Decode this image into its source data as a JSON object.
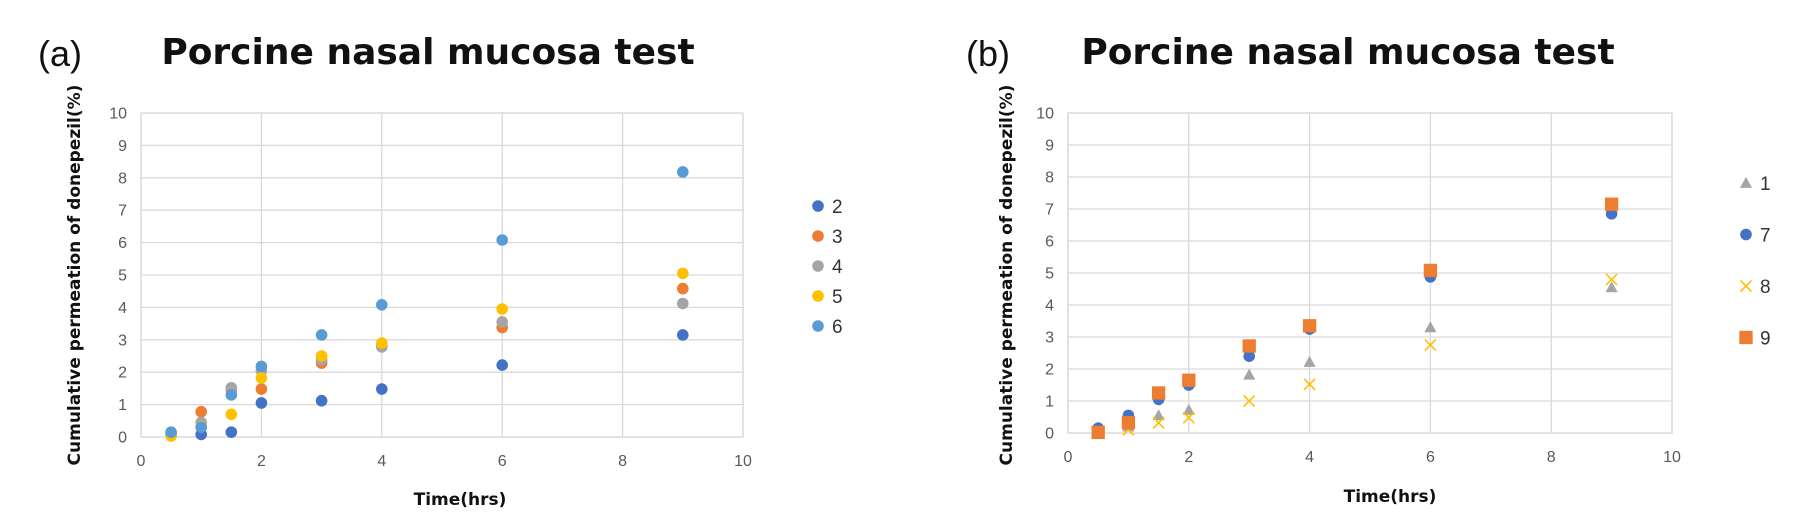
{
  "chart_data": [
    {
      "type": "scatter",
      "panel_label": "(a)",
      "title": "Porcine nasal mucosa test",
      "xlabel": "Time(hrs)",
      "ylabel": "Cumulative permeation of donepezil(%)",
      "xlim": [
        0,
        10
      ],
      "ylim": [
        0,
        10
      ],
      "xticks": [
        0,
        2,
        4,
        6,
        8,
        10
      ],
      "yticks": [
        0,
        1,
        2,
        3,
        4,
        5,
        6,
        7,
        8,
        9,
        10
      ],
      "grid": true,
      "legend_position": "right",
      "series": [
        {
          "name": "2",
          "marker": "circle",
          "color": "#4472C4",
          "x": [
            0.5,
            1,
            1.5,
            2,
            3,
            4,
            6,
            9
          ],
          "y": [
            0.05,
            0.08,
            0.15,
            1.05,
            1.12,
            1.48,
            2.22,
            3.15
          ]
        },
        {
          "name": "3",
          "marker": "circle",
          "color": "#ED7D31",
          "x": [
            0.5,
            1,
            1.5,
            2,
            3,
            4,
            6,
            9
          ],
          "y": [
            0.1,
            0.78,
            1.45,
            1.48,
            2.28,
            2.82,
            3.38,
            4.58
          ]
        },
        {
          "name": "4",
          "marker": "circle",
          "color": "#A5A5A5",
          "x": [
            0.5,
            1,
            1.5,
            2,
            3,
            4,
            6,
            9
          ],
          "y": [
            0.08,
            0.45,
            1.52,
            2.05,
            2.38,
            2.78,
            3.55,
            4.12
          ]
        },
        {
          "name": "5",
          "marker": "circle",
          "color": "#FFC000",
          "x": [
            0.5,
            1,
            1.5,
            2,
            3,
            4,
            6,
            9
          ],
          "y": [
            0.03,
            0.32,
            0.7,
            1.82,
            2.5,
            2.9,
            3.95,
            5.05
          ]
        },
        {
          "name": "6",
          "marker": "circle",
          "color": "#5B9BD5",
          "x": [
            0.5,
            1,
            1.5,
            2,
            3,
            4,
            6,
            9
          ],
          "y": [
            0.15,
            0.3,
            1.3,
            2.18,
            3.15,
            4.08,
            6.08,
            8.18
          ]
        }
      ]
    },
    {
      "type": "scatter",
      "panel_label": "(b)",
      "title": "Porcine nasal mucosa test",
      "xlabel": "Time(hrs)",
      "ylabel": "Cumulative permeation of donepezil(%)",
      "xlim": [
        0,
        10
      ],
      "ylim": [
        0,
        10
      ],
      "xticks": [
        0,
        2,
        4,
        6,
        8,
        10
      ],
      "yticks": [
        0,
        1,
        2,
        3,
        4,
        5,
        6,
        7,
        8,
        9,
        10
      ],
      "grid": true,
      "legend_position": "right",
      "series": [
        {
          "name": "1",
          "marker": "triangle",
          "color": "#A5A5A5",
          "x": [
            0.5,
            1,
            1.5,
            2,
            3,
            4,
            6,
            9
          ],
          "y": [
            0.05,
            0.2,
            0.55,
            0.72,
            1.82,
            2.22,
            3.3,
            4.55
          ]
        },
        {
          "name": "7",
          "marker": "circle",
          "color": "#4472C4",
          "x": [
            0.5,
            1,
            1.5,
            2,
            3,
            4,
            6,
            9
          ],
          "y": [
            0.15,
            0.55,
            1.05,
            1.5,
            2.4,
            3.25,
            4.88,
            6.85
          ]
        },
        {
          "name": "8",
          "marker": "x",
          "color": "#FFC000",
          "x": [
            0.5,
            1,
            1.5,
            2,
            3,
            4,
            6,
            9
          ],
          "y": [
            0.02,
            0.1,
            0.32,
            0.48,
            1.0,
            1.52,
            2.75,
            4.8
          ]
        },
        {
          "name": "9",
          "marker": "square",
          "color": "#ED7D31",
          "x": [
            0.5,
            1,
            1.5,
            2,
            3,
            4,
            6,
            9
          ],
          "y": [
            0.02,
            0.32,
            1.25,
            1.65,
            2.72,
            3.35,
            5.08,
            7.15
          ]
        }
      ]
    }
  ]
}
